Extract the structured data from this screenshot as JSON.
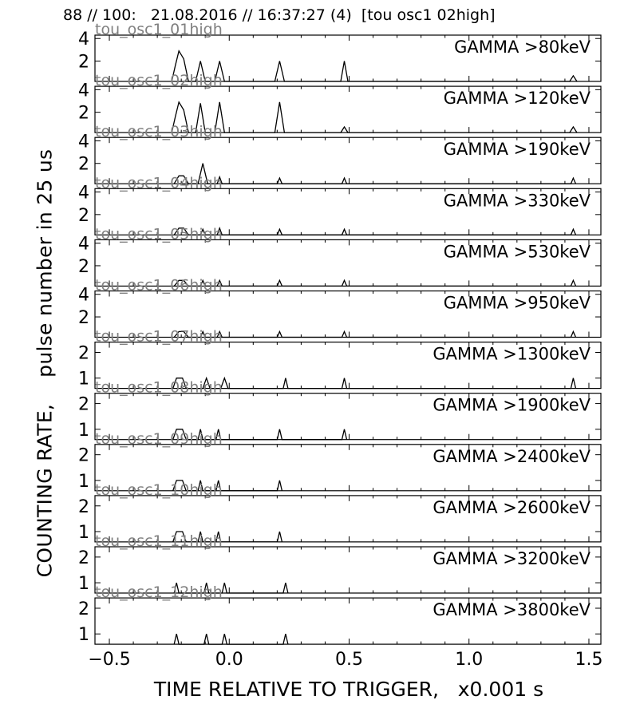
{
  "title": "88 // 100:   21.08.2016 // 16:37:27 (4)  [tou osc1 02high]",
  "xlabel": "TIME RELATIVE TO TRIGGER,   x0.001 s",
  "ylabel": "COUNTING RATE,    pulse number in 25 us",
  "x_ticks": [
    "−0.5",
    "0.0",
    "0.5",
    "1.0",
    "1.5"
  ],
  "colors": {
    "line": "#000000",
    "axes": "#000000",
    "channel_label": "#808080",
    "background": "#ffffff"
  },
  "chart_data": [
    {
      "type": "line",
      "panel_label": "GAMMA >80keV",
      "channel": "tou_osc1_01high",
      "ylim": [
        0.2,
        4.3
      ],
      "yticks": [
        2,
        4
      ],
      "xlim": [
        -0.56,
        1.55
      ],
      "x": [
        -0.24,
        -0.225,
        -0.21,
        -0.19,
        -0.17,
        -0.14,
        -0.12,
        -0.1,
        -0.06,
        -0.04,
        -0.02,
        0.19,
        0.21,
        0.23,
        0.465,
        0.48,
        0.495,
        1.42,
        1.435,
        1.45
      ],
      "y": [
        0.2,
        1.6,
        2.9,
        2.2,
        0.2,
        0.2,
        2.0,
        0.2,
        0.2,
        2.0,
        0.2,
        0.2,
        2.0,
        0.2,
        0.2,
        2.0,
        0.2,
        0.2,
        0.7,
        0.2
      ]
    },
    {
      "type": "line",
      "panel_label": "GAMMA >120keV",
      "channel": "tou_osc1_02high",
      "ylim": [
        0.2,
        4.3
      ],
      "yticks": [
        2,
        4
      ],
      "xlim": [
        -0.56,
        1.55
      ],
      "x": [
        -0.24,
        -0.225,
        -0.21,
        -0.19,
        -0.17,
        -0.14,
        -0.12,
        -0.1,
        -0.06,
        -0.04,
        -0.02,
        0.19,
        0.21,
        0.23,
        0.465,
        0.48,
        0.495,
        1.42,
        1.435,
        1.45
      ],
      "y": [
        0.2,
        1.6,
        2.9,
        2.2,
        0.2,
        0.2,
        2.8,
        0.2,
        0.2,
        2.9,
        0.2,
        0.2,
        2.9,
        0.2,
        0.2,
        0.7,
        0.2,
        0.2,
        0.7,
        0.2
      ]
    },
    {
      "type": "line",
      "panel_label": "GAMMA >190keV",
      "channel": "tou_osc1_03high",
      "ylim": [
        0.2,
        4.3
      ],
      "yticks": [
        2,
        4
      ],
      "xlim": [
        -0.56,
        1.55
      ],
      "x": [
        -0.23,
        -0.21,
        -0.19,
        -0.17,
        -0.13,
        -0.11,
        -0.09,
        -0.05,
        -0.04,
        -0.03,
        0.2,
        0.21,
        0.22,
        0.47,
        0.48,
        0.49,
        1.425,
        1.435,
        1.445
      ],
      "y": [
        0.2,
        0.9,
        0.9,
        0.2,
        0.2,
        2.0,
        0.2,
        0.2,
        0.8,
        0.2,
        0.2,
        0.7,
        0.2,
        0.2,
        0.7,
        0.2,
        0.2,
        0.7,
        0.2
      ]
    },
    {
      "type": "line",
      "panel_label": "GAMMA >330keV",
      "channel": "tou_osc1_04high",
      "ylim": [
        0.2,
        4.3
      ],
      "yticks": [
        2,
        4
      ],
      "xlim": [
        -0.56,
        1.55
      ],
      "x": [
        -0.23,
        -0.21,
        -0.19,
        -0.17,
        -0.12,
        -0.11,
        -0.1,
        -0.05,
        -0.04,
        -0.03,
        0.2,
        0.21,
        0.22,
        0.47,
        0.48,
        0.49,
        1.425,
        1.435,
        1.445
      ],
      "y": [
        0.2,
        0.8,
        0.8,
        0.2,
        0.2,
        0.7,
        0.2,
        0.2,
        0.8,
        0.2,
        0.2,
        0.7,
        0.2,
        0.2,
        0.7,
        0.2,
        0.2,
        0.7,
        0.2
      ]
    },
    {
      "type": "line",
      "panel_label": "GAMMA >530keV",
      "channel": "tou_osc1_05high",
      "ylim": [
        0.2,
        4.3
      ],
      "yticks": [
        2,
        4
      ],
      "xlim": [
        -0.56,
        1.55
      ],
      "x": [
        -0.23,
        -0.21,
        -0.19,
        -0.17,
        -0.12,
        -0.11,
        -0.1,
        -0.05,
        -0.04,
        -0.03,
        0.2,
        0.21,
        0.22,
        0.47,
        0.48,
        0.49,
        1.425,
        1.435,
        1.445
      ],
      "y": [
        0.2,
        0.7,
        0.7,
        0.2,
        0.2,
        0.7,
        0.2,
        0.2,
        0.7,
        0.2,
        0.2,
        0.7,
        0.2,
        0.2,
        0.7,
        0.2,
        0.2,
        0.7,
        0.2
      ]
    },
    {
      "type": "line",
      "panel_label": "GAMMA >950keV",
      "channel": "tou_osc1_06high",
      "ylim": [
        0.2,
        4.3
      ],
      "yticks": [
        2,
        4
      ],
      "xlim": [
        -0.56,
        1.55
      ],
      "x": [
        -0.23,
        -0.21,
        -0.19,
        -0.17,
        -0.12,
        -0.11,
        -0.1,
        -0.05,
        -0.04,
        -0.03,
        0.2,
        0.21,
        0.22,
        0.47,
        0.48,
        0.49,
        1.425,
        1.435,
        1.445
      ],
      "y": [
        0.2,
        0.7,
        0.7,
        0.2,
        0.2,
        0.7,
        0.2,
        0.2,
        0.7,
        0.2,
        0.2,
        0.7,
        0.2,
        0.2,
        0.7,
        0.2,
        0.2,
        0.7,
        0.2
      ]
    },
    {
      "type": "line",
      "panel_label": "GAMMA >1300keV",
      "channel": "tou_osc1_07high",
      "ylim": [
        0.6,
        2.4
      ],
      "yticks": [
        1,
        2
      ],
      "xlim": [
        -0.56,
        1.55
      ],
      "x": [
        -0.235,
        -0.22,
        -0.195,
        -0.18,
        -0.11,
        -0.095,
        -0.08,
        -0.035,
        -0.02,
        -0.005,
        0.225,
        0.235,
        0.245,
        0.47,
        0.48,
        0.49,
        1.425,
        1.435,
        1.445
      ],
      "y": [
        0.6,
        1.0,
        1.0,
        0.6,
        0.6,
        1.0,
        0.6,
        0.6,
        1.0,
        0.6,
        0.6,
        1.0,
        0.6,
        0.6,
        1.0,
        0.6,
        0.6,
        1.0,
        0.6
      ]
    },
    {
      "type": "line",
      "panel_label": "GAMMA >1900keV",
      "channel": "tou_osc1_08high",
      "ylim": [
        0.6,
        2.4
      ],
      "yticks": [
        1,
        2
      ],
      "xlim": [
        -0.56,
        1.55
      ],
      "x": [
        -0.235,
        -0.22,
        -0.195,
        -0.18,
        -0.13,
        -0.12,
        -0.11,
        -0.055,
        -0.045,
        -0.035,
        0.2,
        0.21,
        0.22,
        0.47,
        0.48,
        0.49
      ],
      "y": [
        0.6,
        1.0,
        1.0,
        0.6,
        0.6,
        1.0,
        0.6,
        0.6,
        1.0,
        0.6,
        0.6,
        1.0,
        0.6,
        0.6,
        1.0,
        0.6
      ]
    },
    {
      "type": "line",
      "panel_label": "GAMMA >2400keV",
      "channel": "tou_osc1_09high",
      "ylim": [
        0.6,
        2.4
      ],
      "yticks": [
        1,
        2
      ],
      "xlim": [
        -0.56,
        1.55
      ],
      "x": [
        -0.235,
        -0.22,
        -0.195,
        -0.18,
        -0.13,
        -0.12,
        -0.11,
        -0.055,
        -0.045,
        -0.035,
        0.2,
        0.21,
        0.22
      ],
      "y": [
        0.6,
        1.0,
        1.0,
        0.6,
        0.6,
        1.0,
        0.6,
        0.6,
        1.0,
        0.6,
        0.6,
        1.0,
        0.6
      ]
    },
    {
      "type": "line",
      "panel_label": "GAMMA >2600keV",
      "channel": "tou_osc1_10high",
      "ylim": [
        0.6,
        2.4
      ],
      "yticks": [
        1,
        2
      ],
      "xlim": [
        -0.56,
        1.55
      ],
      "x": [
        -0.235,
        -0.22,
        -0.195,
        -0.18,
        -0.13,
        -0.12,
        -0.11,
        -0.055,
        -0.045,
        -0.035,
        0.2,
        0.21,
        0.22
      ],
      "y": [
        0.6,
        1.0,
        1.0,
        0.6,
        0.6,
        1.0,
        0.6,
        0.6,
        1.0,
        0.6,
        0.6,
        1.0,
        0.6
      ]
    },
    {
      "type": "line",
      "panel_label": "GAMMA >3200keV",
      "channel": "tou_osc1_11high",
      "ylim": [
        0.6,
        2.4
      ],
      "yticks": [
        1,
        2
      ],
      "xlim": [
        -0.56,
        1.55
      ],
      "x": [
        -0.23,
        -0.22,
        -0.21,
        -0.105,
        -0.095,
        -0.085,
        -0.03,
        -0.02,
        -0.01,
        0.225,
        0.235,
        0.245
      ],
      "y": [
        0.6,
        1.0,
        0.6,
        0.6,
        1.0,
        0.6,
        0.6,
        1.0,
        0.6,
        0.6,
        1.0,
        0.6
      ]
    },
    {
      "type": "line",
      "panel_label": "GAMMA >3800keV",
      "channel": "tou_osc1_12high",
      "ylim": [
        0.6,
        2.4
      ],
      "yticks": [
        1,
        2
      ],
      "xlim": [
        -0.56,
        1.55
      ],
      "x": [
        -0.23,
        -0.22,
        -0.21,
        -0.105,
        -0.095,
        -0.085,
        -0.03,
        -0.02,
        -0.01,
        0.225,
        0.235,
        0.245
      ],
      "y": [
        0.6,
        1.0,
        0.6,
        0.6,
        1.0,
        0.6,
        0.6,
        1.0,
        0.6,
        0.6,
        1.0,
        0.6
      ]
    }
  ]
}
